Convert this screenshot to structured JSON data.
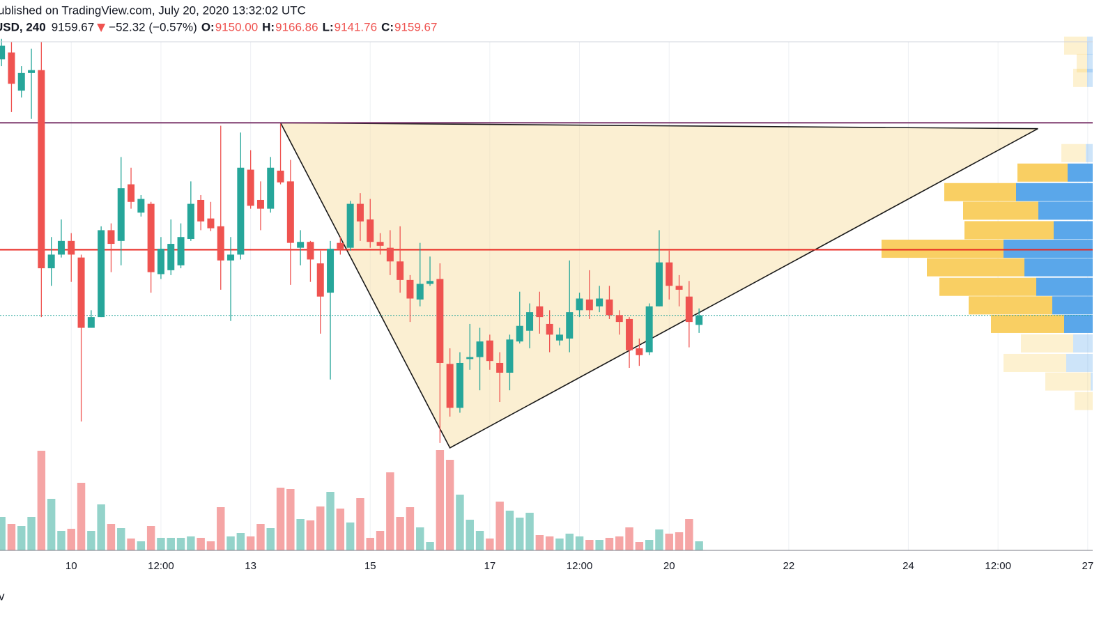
{
  "header": {
    "published": "ublished on TradingView.com, July 20, 2020 13:32:02 UTC",
    "symbol": "USD, 240",
    "last": "9159.67",
    "change": "−52.32 (−0.57%)",
    "o_label": "O:",
    "o": "9150.00",
    "h_label": "H:",
    "h": "9166.86",
    "l_label": "L:",
    "l": "9141.76",
    "c_label": "C:",
    "c": "9159.67",
    "footer": "v"
  },
  "chart_data": {
    "type": "candlestick",
    "categories": [
      null,
      null,
      null,
      null,
      null,
      null,
      null,
      "10",
      null,
      null,
      null,
      null,
      null,
      null,
      null,
      null,
      "12:00",
      null,
      null,
      null,
      null,
      null,
      null,
      null,
      null,
      "13",
      null,
      null,
      null,
      null,
      null,
      null,
      null,
      null,
      null,
      null,
      null,
      "15",
      null,
      null,
      null,
      null,
      null,
      null,
      null,
      null,
      null,
      null,
      null,
      "17",
      null,
      null,
      null,
      null,
      null,
      null,
      null,
      null,
      "12:00",
      null,
      null,
      null,
      null,
      null,
      null,
      null,
      null,
      "20",
      null,
      null,
      null,
      null,
      null,
      null,
      null,
      null,
      null,
      null,
      null,
      "22",
      null,
      null,
      null,
      null,
      null,
      null,
      null,
      null,
      null,
      null,
      null,
      "24",
      null,
      null,
      null,
      null,
      null,
      null,
      null,
      null,
      "12:00",
      null,
      null,
      null,
      null,
      null,
      null,
      null,
      null,
      "27"
    ],
    "open": [
      9422,
      9429,
      9390,
      9408,
      9411,
      9208,
      9222,
      9236,
      9219,
      9147,
      9158,
      9247,
      9236,
      9294,
      9265,
      9274,
      9202,
      9206,
      9211,
      9238,
      9278,
      9259,
      9251,
      9216,
      9222,
      9309,
      9278,
      9269,
      9308,
      9297,
      9229,
      9235,
      9213,
      9183,
      9234,
      9229,
      9274,
      9258,
      9235,
      9229,
      9215,
      9196,
      9176,
      9192,
      9197,
      9110,
      9065,
      9115,
      9117,
      9134,
      9111,
      9101,
      9133,
      9144,
      9169,
      9151,
      9134,
      9136,
      9165,
      9176,
      9169,
      9176,
      9160,
      9156,
      9126,
      9122,
      9169,
      9214,
      9190,
      9179,
      9150,
      null,
      null,
      null,
      null,
      null,
      null,
      null,
      null,
      null,
      null,
      null,
      null,
      null,
      null,
      null,
      null,
      null,
      null,
      null,
      null,
      null,
      null,
      null,
      null,
      null,
      null,
      null,
      null,
      null,
      null,
      null,
      null,
      null,
      null,
      null,
      null,
      null,
      null,
      null
    ],
    "high": [
      9443,
      9440,
      9415,
      9433,
      9440,
      9240,
      9258,
      9244,
      9222,
      9165,
      9251,
      9254,
      9322,
      9311,
      9283,
      9276,
      9240,
      9258,
      9254,
      9297,
      9283,
      9276,
      9354,
      9240,
      9347,
      9329,
      9297,
      9322,
      9356,
      9319,
      9247,
      9236,
      9226,
      9236,
      9240,
      9277,
      9285,
      9279,
      9244,
      9247,
      9251,
      9201,
      9234,
      9220,
      9213,
      9126,
      9122,
      9151,
      9147,
      9140,
      9122,
      9140,
      9184,
      9172,
      9184,
      9165,
      9147,
      9216,
      9183,
      9206,
      9190,
      9190,
      9165,
      9158,
      9136,
      9172,
      9247,
      9226,
      9201,
      9195,
      9166.86,
      null,
      null,
      null,
      null,
      null,
      null,
      null,
      null,
      null,
      null,
      null,
      null,
      null,
      null,
      null,
      null,
      null,
      null,
      null,
      null,
      null,
      null,
      null,
      null,
      null,
      null,
      null,
      null,
      null,
      null,
      null,
      null,
      null,
      null,
      null,
      null,
      null,
      null,
      null
    ],
    "low": [
      9415,
      9368,
      9383,
      9361,
      9158,
      9190,
      9219,
      9194,
      9051,
      9147,
      9158,
      9204,
      9211,
      9269,
      9261,
      9183,
      9197,
      9201,
      9208,
      9236,
      9247,
      9246,
      9186,
      9154,
      9217,
      9269,
      9247,
      9265,
      9294,
      9191,
      9211,
      9194,
      9141,
      9094,
      9222,
      9226,
      9236,
      9229,
      9222,
      9201,
      9183,
      9153,
      9169,
      9190,
      9029,
      9056,
      9060,
      9104,
      9083,
      9104,
      9071,
      9083,
      9131,
      9126,
      9141,
      9122,
      9129,
      9122,
      9158,
      9156,
      9163,
      9156,
      9140,
      9106,
      9108,
      9119,
      9169,
      9176,
      9169,
      9127,
      9141.76,
      null,
      null,
      null,
      null,
      null,
      null,
      null,
      null,
      null,
      null,
      null,
      null,
      null,
      null,
      null,
      null,
      null,
      null,
      null,
      null,
      null,
      null,
      null,
      null,
      null,
      null,
      null,
      null,
      null,
      null,
      null,
      null,
      null,
      null,
      null,
      null,
      null,
      null,
      null
    ],
    "close": [
      9436,
      9397,
      9408,
      9411,
      9208,
      9222,
      9236,
      9222,
      9147,
      9158,
      9247,
      9233,
      9290,
      9276,
      9279,
      9204,
      9228,
      9233,
      9240,
      9274,
      9256,
      9249,
      9216,
      9222,
      9311,
      9272,
      9269,
      9311,
      9296,
      9234,
      9235,
      9217,
      9179,
      9228,
      9228,
      9274,
      9256,
      9235,
      9231,
      9215,
      9196,
      9177,
      9192,
      9195,
      9111,
      9065,
      9111,
      9117,
      9133,
      9113,
      9101,
      9135,
      9149,
      9163,
      9158,
      9140,
      9140,
      9163,
      9177,
      9165,
      9177,
      9160,
      9153,
      9124,
      9119,
      9169,
      9214,
      9190,
      9186,
      9153,
      9159.67,
      null,
      null,
      null,
      null,
      null,
      null,
      null,
      null,
      null,
      null,
      null,
      null,
      null,
      null,
      null,
      null,
      null,
      null,
      null,
      null,
      null,
      null,
      null,
      null,
      null,
      null,
      null,
      null,
      null,
      null,
      null,
      null,
      null,
      null,
      null,
      null,
      null,
      null,
      null
    ],
    "volume": [
      48,
      38,
      35,
      48,
      143,
      74,
      28,
      31,
      97,
      28,
      66,
      38,
      32,
      17,
      13,
      35,
      18,
      18,
      18,
      20,
      18,
      13,
      62,
      20,
      25,
      20,
      38,
      32,
      90,
      88,
      45,
      43,
      63,
      84,
      60,
      40,
      75,
      18,
      28,
      112,
      48,
      62,
      33,
      12,
      144,
      130,
      80,
      44,
      28,
      17,
      70,
      57,
      47,
      54,
      22,
      20,
      17,
      24,
      20,
      15,
      15,
      18,
      20,
      33,
      12,
      15,
      30,
      24,
      26,
      45,
      13,
      null,
      null,
      null,
      null,
      null,
      null,
      null,
      null,
      null,
      null,
      null,
      null,
      null,
      null,
      null,
      null,
      null,
      null,
      null,
      null,
      null,
      null,
      null,
      null,
      null,
      null,
      null,
      null,
      null,
      null,
      null,
      null,
      null,
      null,
      null,
      null,
      null,
      null,
      null
    ],
    "ylim": [
      8919,
      9440
    ],
    "volume_lim": [
      0,
      730
    ],
    "up_color": "#26a69a",
    "down_color": "#ef5350",
    "volume_up_color": "#94d3ca",
    "volume_down_color": "#f5a5a5",
    "last_price_line_color": "#26a69a",
    "grid": true,
    "volume_profile": {
      "levels": [
        9436,
        9418,
        9403,
        9326,
        9306,
        9286,
        9267,
        9247,
        9228,
        9209,
        9189,
        9170,
        9151,
        9131,
        9111,
        9092,
        9072
      ],
      "up": [
        8,
        8,
        8,
        10,
        36,
        110,
        78,
        56,
        128,
        98,
        81,
        58,
        41,
        28,
        38,
        3,
        0
      ],
      "down": [
        33,
        15,
        20,
        35,
        72,
        103,
        108,
        128,
        175,
        140,
        139,
        120,
        105,
        75,
        90,
        65,
        26
      ],
      "value_area": [
        4,
        12
      ],
      "up_color": "#5aa7ea",
      "down_color": "#f9cf63"
    },
    "drawings": {
      "lines": [
        {
          "price": 9357,
          "color": "#7e3a6e"
        },
        {
          "price": 9227,
          "color": "#e8261f"
        }
      ],
      "triangle": {
        "points": [
          [
            28,
            9357
          ],
          [
            104,
            9351
          ],
          [
            45,
            9024
          ]
        ],
        "fill": "#f6dc9c",
        "stroke": "#1a1a1a"
      }
    }
  }
}
